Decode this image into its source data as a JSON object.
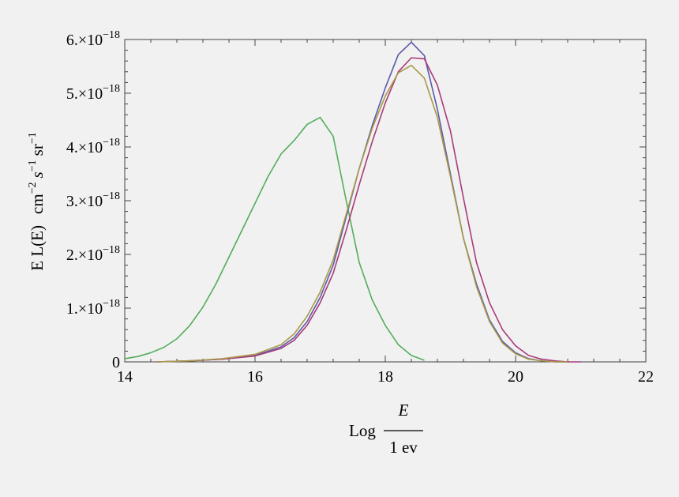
{
  "chart_data": {
    "type": "line",
    "title": "",
    "xlabel_prefix": "Log",
    "xlabel_numerator": "E",
    "xlabel_denominator": "1 ev",
    "ylabel_main": "E L(E)",
    "ylabel_units": [
      {
        "base": "cm",
        "exp": "−2",
        "italic": false
      },
      {
        "base": "s",
        "exp": "−1",
        "italic": true
      },
      {
        "base": "sr",
        "exp": "−1",
        "italic": false
      }
    ],
    "xlim": [
      14,
      22
    ],
    "ylim": [
      0,
      6.0
    ],
    "y_scale_note": "values in units of 1e-18",
    "x_ticks": [
      {
        "value": 14,
        "label": "14"
      },
      {
        "value": 16,
        "label": "16"
      },
      {
        "value": 18,
        "label": "18"
      },
      {
        "value": 20,
        "label": "20"
      },
      {
        "value": 22,
        "label": "22"
      }
    ],
    "y_ticks": [
      {
        "value": 0,
        "label": "0",
        "mant": "",
        "exp": ""
      },
      {
        "value": 1,
        "label": "",
        "mant": "1.×10",
        "exp": "−18"
      },
      {
        "value": 2,
        "label": "",
        "mant": "2.×10",
        "exp": "−18"
      },
      {
        "value": 3,
        "label": "",
        "mant": "3.×10",
        "exp": "−18"
      },
      {
        "value": 4,
        "label": "",
        "mant": "4.×10",
        "exp": "−18"
      },
      {
        "value": 5,
        "label": "",
        "mant": "5.×10",
        "exp": "−18"
      },
      {
        "value": 6,
        "label": "",
        "mant": "6.×10",
        "exp": "−18"
      }
    ],
    "grid": false,
    "series": [
      {
        "color": "#53ad5b",
        "x": [
          14.0,
          14.2,
          14.4,
          14.6,
          14.8,
          15.0,
          15.2,
          15.4,
          15.6,
          15.8,
          16.0,
          16.2,
          16.4,
          16.6,
          16.8,
          17.0,
          17.2,
          17.4,
          17.6,
          17.8,
          18.0,
          18.2,
          18.4,
          18.6
        ],
        "y": [
          0.06,
          0.1,
          0.17,
          0.27,
          0.43,
          0.68,
          1.02,
          1.45,
          1.95,
          2.45,
          2.95,
          3.45,
          3.87,
          4.12,
          4.42,
          4.55,
          4.2,
          3.0,
          1.85,
          1.15,
          0.68,
          0.32,
          0.12,
          0.03
        ]
      },
      {
        "color": "#5a5aa8",
        "x": [
          14.5,
          15.0,
          15.5,
          16.0,
          16.4,
          16.6,
          16.8,
          17.0,
          17.2,
          17.4,
          17.6,
          17.8,
          18.0,
          18.2,
          18.4,
          18.6,
          18.8,
          19.0,
          19.2,
          19.4,
          19.6,
          19.8,
          20.0,
          20.2,
          20.4,
          20.6,
          20.8
        ],
        "y": [
          0.0,
          0.02,
          0.05,
          0.12,
          0.28,
          0.45,
          0.75,
          1.2,
          1.8,
          2.7,
          3.6,
          4.4,
          5.1,
          5.72,
          5.95,
          5.7,
          4.7,
          3.5,
          2.3,
          1.45,
          0.78,
          0.38,
          0.17,
          0.06,
          0.02,
          0.0,
          0.0
        ]
      },
      {
        "color": "#a83a7a",
        "x": [
          14.5,
          15.0,
          15.5,
          16.0,
          16.4,
          16.6,
          16.8,
          17.0,
          17.2,
          17.4,
          17.6,
          17.8,
          18.0,
          18.2,
          18.4,
          18.6,
          18.8,
          19.0,
          19.2,
          19.4,
          19.6,
          19.8,
          20.0,
          20.2,
          20.4,
          20.6,
          20.8,
          21.0
        ],
        "y": [
          0.0,
          0.02,
          0.05,
          0.11,
          0.25,
          0.4,
          0.68,
          1.1,
          1.65,
          2.45,
          3.3,
          4.1,
          4.82,
          5.4,
          5.66,
          5.64,
          5.15,
          4.3,
          3.05,
          1.85,
          1.1,
          0.6,
          0.3,
          0.12,
          0.05,
          0.02,
          0.0,
          0.0
        ]
      },
      {
        "color": "#a89a48",
        "x": [
          14.5,
          15.0,
          15.5,
          16.0,
          16.4,
          16.6,
          16.8,
          17.0,
          17.2,
          17.4,
          17.6,
          17.8,
          18.0,
          18.2,
          18.4,
          18.6,
          18.8,
          19.0,
          19.2,
          19.4,
          19.6,
          19.8,
          20.0,
          20.2,
          20.4,
          20.6,
          20.8
        ],
        "y": [
          0.0,
          0.02,
          0.06,
          0.14,
          0.32,
          0.52,
          0.85,
          1.3,
          1.9,
          2.75,
          3.6,
          4.35,
          4.95,
          5.38,
          5.52,
          5.28,
          4.55,
          3.45,
          2.3,
          1.4,
          0.75,
          0.35,
          0.15,
          0.05,
          0.02,
          0.0,
          0.0
        ]
      }
    ]
  }
}
